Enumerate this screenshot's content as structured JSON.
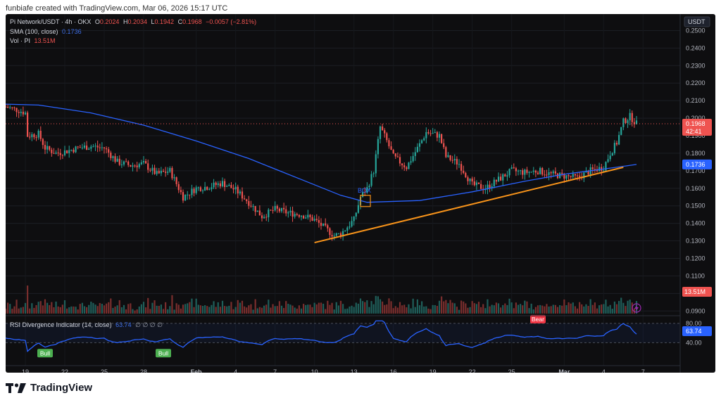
{
  "header_caption": "funbiafe created with TradingView.com, Mar 06, 2026 15:17 UTC",
  "legend": {
    "symbol": "Pi Network/USDT · 4h · OKX",
    "o_label": "O",
    "o_val": "0.2024",
    "h_label": "H",
    "h_val": "0.2034",
    "l_label": "L",
    "l_val": "0.1942",
    "c_label": "C",
    "c_val": "0.1968",
    "change": "−0.0057 (−2.81%)",
    "sma_label": "SMA (100, close)",
    "sma_val": "0.1736",
    "vol_label": "Vol · PI",
    "vol_val": "13.51M",
    "rsi_label": "RSI Divergence Indicator (14, close)",
    "rsi_val": "63.74",
    "rsi_na": "∅ ∅ ∅ ∅"
  },
  "footer": {
    "brand": "TradingView"
  },
  "colors": {
    "up": "#26a69a",
    "down": "#ef5350",
    "sma": "#2962ff",
    "trend": "#f7931a",
    "rsi": "#2962ff",
    "bg": "#0e0e10",
    "bull": "#4caf50",
    "bear": "#f23645"
  },
  "chart_data": {
    "type": "candlestick",
    "title": "Pi Network/USDT · 4h · OKX",
    "currency": "USDT",
    "y_ticks": [
      "0.2500",
      "0.2400",
      "0.2300",
      "0.2200",
      "0.2100",
      "0.2000",
      "0.1900",
      "0.1800",
      "0.1700",
      "0.1600",
      "0.1500",
      "0.1400",
      "0.1300",
      "0.1200",
      "0.1100",
      "0.1000",
      "0.0900"
    ],
    "ylim": [
      0.0885,
      0.257
    ],
    "x_ticks": [
      "19",
      "22",
      "25",
      "28",
      "Feb",
      "4",
      "7",
      "10",
      "13",
      "16",
      "19",
      "22",
      "25",
      "Mar",
      "4",
      "7"
    ],
    "last_price": "0.1968",
    "countdown": "42:41",
    "sma_last": "0.1736",
    "volume_last": "13.51M",
    "box_label": "BOX",
    "close_path": [
      [
        "Jan 17 12:00",
        0.2065
      ],
      [
        "Jan 18 12:00",
        0.2045
      ],
      [
        "Jan 19 00:00",
        0.203
      ],
      [
        "Jan 19 04:00",
        0.19
      ],
      [
        "Jan 20 00:00",
        0.191
      ],
      [
        "Jan 20 12:00",
        0.183
      ],
      [
        "Jan 21 08:00",
        0.18
      ],
      [
        "Jan 22 00:00",
        0.181
      ],
      [
        "Jan 23 00:00",
        0.183
      ],
      [
        "Jan 24 00:00",
        0.184
      ],
      [
        "Jan 25 00:00",
        0.183
      ],
      [
        "Jan 26 00:00",
        0.175
      ],
      [
        "Jan 27 00:00",
        0.173
      ],
      [
        "Jan 28 00:00",
        0.174
      ],
      [
        "Jan 29 00:00",
        0.168
      ],
      [
        "Jan 30 00:00",
        0.17
      ],
      [
        "Jan 31 00:00",
        0.155
      ],
      [
        "Feb 01 00:00",
        0.16
      ],
      [
        "Feb 02 00:00",
        0.161
      ],
      [
        "Feb 03 00:00",
        0.163
      ],
      [
        "Feb 04 00:00",
        0.159
      ],
      [
        "Feb 05 00:00",
        0.152
      ],
      [
        "Feb 06 00:00",
        0.144
      ],
      [
        "Feb 07 00:00",
        0.148
      ],
      [
        "Feb 08 00:00",
        0.146
      ],
      [
        "Feb 09 00:00",
        0.145
      ],
      [
        "Feb 10 00:00",
        0.142
      ],
      [
        "Feb 11 00:00",
        0.136
      ],
      [
        "Feb 11 12:00",
        0.133
      ],
      [
        "Feb 12 00:00",
        0.134
      ],
      [
        "Feb 12 12:00",
        0.138
      ],
      [
        "Feb 13 00:00",
        0.142
      ],
      [
        "Feb 13 12:00",
        0.155
      ],
      [
        "Feb 14 00:00",
        0.16
      ],
      [
        "Feb 14 12:00",
        0.17
      ],
      [
        "Feb 15 00:00",
        0.195
      ],
      [
        "Feb 15 12:00",
        0.187
      ],
      [
        "Feb 16 00:00",
        0.178
      ],
      [
        "Feb 17 00:00",
        0.172
      ],
      [
        "Feb 18 00:00",
        0.185
      ],
      [
        "Feb 18 12:00",
        0.192
      ],
      [
        "Feb 19 12:00",
        0.19
      ],
      [
        "Feb 20 00:00",
        0.178
      ],
      [
        "Feb 21 00:00",
        0.174
      ],
      [
        "Feb 22 00:00",
        0.162
      ],
      [
        "Feb 23 00:00",
        0.16
      ],
      [
        "Feb 24 00:00",
        0.165
      ],
      [
        "Feb 25 00:00",
        0.17
      ],
      [
        "Feb 26 00:00",
        0.169
      ],
      [
        "Feb 27 00:00",
        0.17
      ],
      [
        "Feb 28 00:00",
        0.168
      ],
      [
        "Mar 01 00:00",
        0.167
      ],
      [
        "Mar 02 00:00",
        0.166
      ],
      [
        "Mar 03 00:00",
        0.17
      ],
      [
        "Mar 04 00:00",
        0.172
      ],
      [
        "Mar 04 12:00",
        0.18
      ],
      [
        "Mar 05 00:00",
        0.186
      ],
      [
        "Mar 05 12:00",
        0.198
      ],
      [
        "Mar 06 00:00",
        0.201
      ],
      [
        "Mar 06 12:00",
        0.1968
      ]
    ],
    "sma_path": [
      [
        "Jan 17 12:00",
        0.208
      ],
      [
        "Jan 20 00:00",
        0.2075
      ],
      [
        "Jan 24 00:00",
        0.203
      ],
      [
        "Jan 28 00:00",
        0.196
      ],
      [
        "Feb 01 00:00",
        0.187
      ],
      [
        "Feb 05 00:00",
        0.177
      ],
      [
        "Feb 09 00:00",
        0.165
      ],
      [
        "Feb 12 00:00",
        0.156
      ],
      [
        "Feb 14 00:00",
        0.152
      ],
      [
        "Feb 18 00:00",
        0.153
      ],
      [
        "Feb 22 00:00",
        0.158
      ],
      [
        "Feb 26 00:00",
        0.164
      ],
      [
        "Mar 01 00:00",
        0.168
      ],
      [
        "Mar 04 00:00",
        0.171
      ],
      [
        "Mar 06 12:00",
        0.1736
      ]
    ],
    "trendline": [
      [
        "Feb 10 00:00",
        0.129
      ],
      [
        "Mar 05 12:00",
        0.172
      ]
    ],
    "rsi": {
      "name": "RSI Divergence Indicator (14, close)",
      "levels": [
        "80.00",
        "40.00"
      ],
      "last": "63.74",
      "signals": [
        {
          "label": "Bull",
          "date": "Jan 20 12:00"
        },
        {
          "label": "Bull",
          "date": "Jan 29 12:00"
        },
        {
          "label": "Bear",
          "date": "Feb 27 00:00"
        }
      ]
    }
  }
}
